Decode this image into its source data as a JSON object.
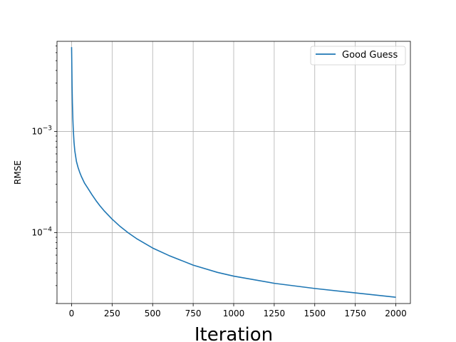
{
  "chart_data": {
    "type": "line",
    "title": "",
    "xlabel": "Iteration",
    "ylabel": "RMSE",
    "xlim": [
      -90,
      2090
    ],
    "ylim_log10": [
      -4.7,
      -2.11
    ],
    "yscale": "log",
    "grid": true,
    "legend_position": "top-right",
    "x_ticks": [
      0,
      250,
      500,
      750,
      1000,
      1250,
      1500,
      1750,
      2000
    ],
    "y_major_ticks": [
      {
        "value": 0.001,
        "mantissa": "10",
        "exponent": "−3"
      },
      {
        "value": 0.0001,
        "mantissa": "10",
        "exponent": "−4"
      }
    ],
    "series": [
      {
        "name": "Good Guess",
        "color": "#1f77b4",
        "x": [
          0,
          1,
          2,
          3,
          5,
          8,
          10,
          15,
          20,
          30,
          40,
          50,
          60,
          80,
          100,
          125,
          150,
          175,
          200,
          250,
          300,
          350,
          400,
          500,
          600,
          750,
          900,
          1000,
          1250,
          1500,
          1750,
          2000
        ],
        "y": [
          0.0068,
          0.0052,
          0.0038,
          0.0028,
          0.0019,
          0.0013,
          0.00108,
          0.00078,
          0.00064,
          0.000505,
          0.00044,
          0.000395,
          0.00036,
          0.000308,
          0.000275,
          0.000238,
          0.000208,
          0.000184,
          0.000165,
          0.000136,
          0.000115,
          9.95e-05,
          8.75e-05,
          7.05e-05,
          5.95e-05,
          4.78e-05,
          4.05e-05,
          3.72e-05,
          3.16e-05,
          2.81e-05,
          2.54e-05,
          2.3e-05
        ]
      }
    ]
  }
}
